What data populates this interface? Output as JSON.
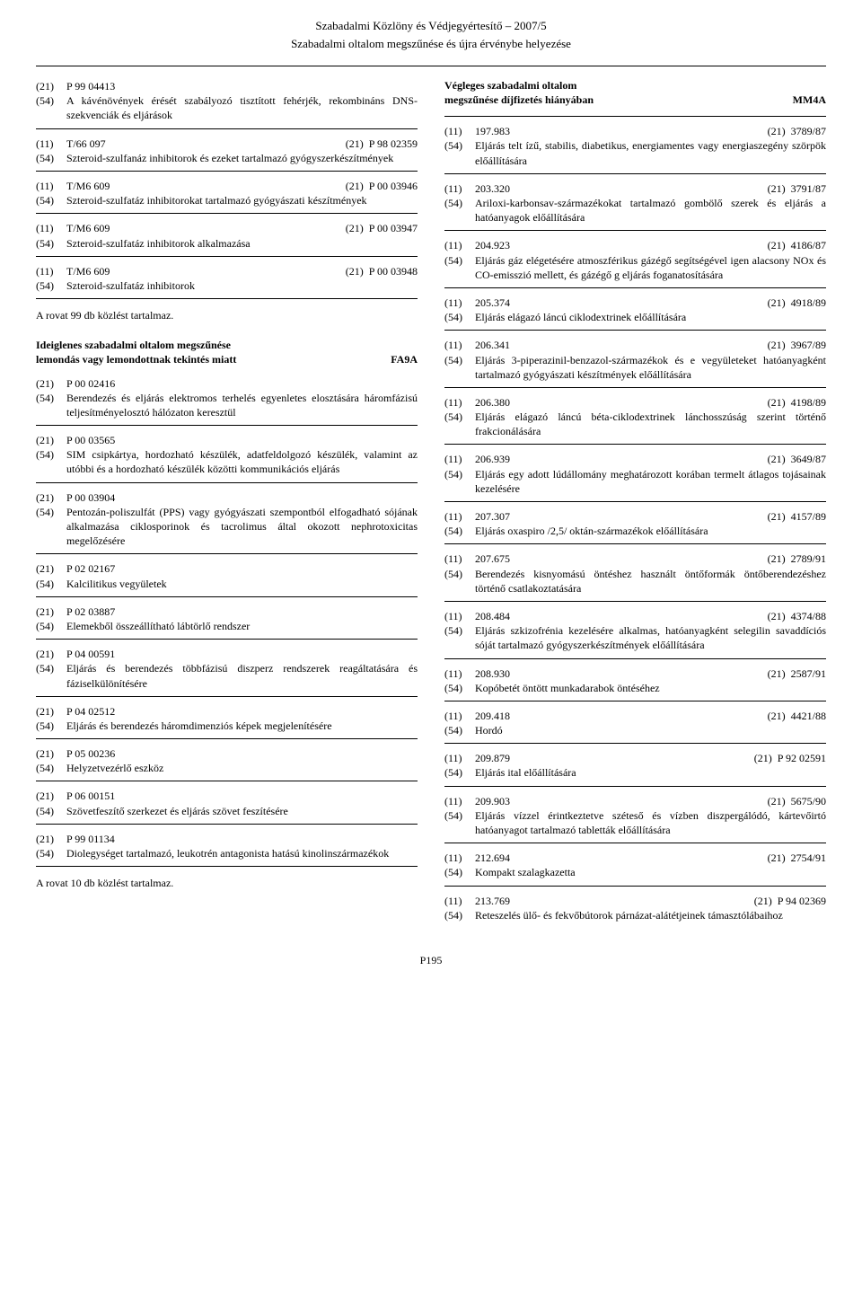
{
  "header": {
    "line1": "Szabadalmi Közlöny és Védjegyértesítő – 2007/5",
    "line2": "Szabadalmi oltalom megszűnése és újra érvénybe helyezése"
  },
  "left_entries_a": [
    {
      "c1": "(21)",
      "v1": "P 99 04413",
      "c2": "",
      "v2": "",
      "d_code": "(54)",
      "d": "A kávénövények érését szabályozó tisztított fehérjék, rekombináns DNS-szekvenciák és eljárások"
    },
    {
      "c1": "(11)",
      "v1": "T/66 097",
      "c2": "(21)",
      "v2": "P 98 02359",
      "d_code": "(54)",
      "d": "Szteroid-szulfanáz inhibitorok és ezeket tartalmazó gyógyszerkészítmények"
    },
    {
      "c1": "(11)",
      "v1": "T/M6 609",
      "c2": "(21)",
      "v2": "P 00 03946",
      "d_code": "(54)",
      "d": "Szteroid-szulfatáz inhibitorokat tartalmazó gyógyászati készítmények"
    },
    {
      "c1": "(11)",
      "v1": "T/M6 609",
      "c2": "(21)",
      "v2": "P 00 03947",
      "d_code": "(54)",
      "d": "Szteroid-szulfatáz inhibitorok alkalmazása"
    },
    {
      "c1": "(11)",
      "v1": "T/M6 609",
      "c2": "(21)",
      "v2": "P 00 03948",
      "d_code": "(54)",
      "d": "Szteroid-szulfatáz inhibitorok"
    }
  ],
  "left_closing_a": "A rovat 99 db közlést tartalmaz.",
  "section_fa9a": {
    "line1": "Ideiglenes szabadalmi oltalom megszűnése",
    "line2": "lemondás vagy lemondottnak tekintés miatt",
    "code": "FA9A"
  },
  "left_entries_b": [
    {
      "c1": "(21)",
      "v1": "P 00 02416",
      "c2": "",
      "v2": "",
      "d_code": "(54)",
      "d": "Berendezés és eljárás elektromos terhelés egyenletes elosztására háromfázisú teljesítményelosztó hálózaton keresztül"
    },
    {
      "c1": "(21)",
      "v1": "P 00 03565",
      "c2": "",
      "v2": "",
      "d_code": "(54)",
      "d": "SIM csipkártya, hordozható készülék, adatfeldolgozó készülék, valamint az utóbbi és a hordozható készülék közötti kommunikációs eljárás"
    },
    {
      "c1": "(21)",
      "v1": "P 00 03904",
      "c2": "",
      "v2": "",
      "d_code": "(54)",
      "d": "Pentozán-poliszulfát (PPS) vagy gyógyászati szempontból elfogadható sójának alkalmazása ciklosporinok és tacrolimus által okozott nephrotoxicitas megelőzésére"
    },
    {
      "c1": "(21)",
      "v1": "P 02 02167",
      "c2": "",
      "v2": "",
      "d_code": "(54)",
      "d": "Kalcilitikus vegyületek"
    },
    {
      "c1": "(21)",
      "v1": "P 02 03887",
      "c2": "",
      "v2": "",
      "d_code": "(54)",
      "d": "Elemekből összeállítható lábtörlő rendszer"
    },
    {
      "c1": "(21)",
      "v1": "P 04 00591",
      "c2": "",
      "v2": "",
      "d_code": "(54)",
      "d": "Eljárás és berendezés többfázisú diszperz rendszerek reagáltatására és fáziselkülönítésére"
    },
    {
      "c1": "(21)",
      "v1": "P 04 02512",
      "c2": "",
      "v2": "",
      "d_code": "(54)",
      "d": "Eljárás és berendezés háromdimenziós képek megjelenítésére"
    },
    {
      "c1": "(21)",
      "v1": "P 05 00236",
      "c2": "",
      "v2": "",
      "d_code": "(54)",
      "d": "Helyzetvezérlő eszköz"
    },
    {
      "c1": "(21)",
      "v1": "P 06 00151",
      "c2": "",
      "v2": "",
      "d_code": "(54)",
      "d": "Szövetfeszítő szerkezet és eljárás szövet feszítésére"
    },
    {
      "c1": "(21)",
      "v1": "P 99 01134",
      "c2": "",
      "v2": "",
      "d_code": "(54)",
      "d": "Diolegységet tartalmazó, leukotrén antagonista hatású kinolinszármazékok"
    }
  ],
  "left_closing_b": "A rovat 10 db közlést tartalmaz.",
  "section_mm4a": {
    "line1": "Végleges szabadalmi oltalom",
    "line2": "megszűnése díjfizetés hiányában",
    "code": "MM4A"
  },
  "right_entries": [
    {
      "c1": "(11)",
      "v1": "197.983",
      "c2": "(21)",
      "v2": "3789/87",
      "d_code": "(54)",
      "d": "Eljárás telt ízű, stabilis, diabetikus, energiamentes vagy energiaszegény szörpök előállítására"
    },
    {
      "c1": "(11)",
      "v1": "203.320",
      "c2": "(21)",
      "v2": "3791/87",
      "d_code": "(54)",
      "d": "Ariloxi-karbonsav-származékokat tartalmazó gombölő szerek és eljárás a hatóanyagok előállítására"
    },
    {
      "c1": "(11)",
      "v1": "204.923",
      "c2": "(21)",
      "v2": "4186/87",
      "d_code": "(54)",
      "d": "Eljárás gáz elégetésére atmoszférikus gázégő segítségével igen alacsony NOx és CO-emisszió mellett, és gázégő g eljárás foganatosítására"
    },
    {
      "c1": "(11)",
      "v1": "205.374",
      "c2": "(21)",
      "v2": "4918/89",
      "d_code": "(54)",
      "d": "Eljárás elágazó láncú ciklodextrinek előállítására"
    },
    {
      "c1": "(11)",
      "v1": "206.341",
      "c2": "(21)",
      "v2": "3967/89",
      "d_code": "(54)",
      "d": "Eljárás 3-piperazinil-benzazol-származékok és e vegyületeket hatóanyagként tartalmazó gyógyászati készítmények előállítására"
    },
    {
      "c1": "(11)",
      "v1": "206.380",
      "c2": "(21)",
      "v2": "4198/89",
      "d_code": "(54)",
      "d": "Eljárás elágazó láncú béta-ciklodextrinek lánchosszúság szerint történő frakcionálására"
    },
    {
      "c1": "(11)",
      "v1": "206.939",
      "c2": "(21)",
      "v2": "3649/87",
      "d_code": "(54)",
      "d": "Eljárás egy adott lúdállomány meghatározott korában termelt átlagos tojásainak kezelésére"
    },
    {
      "c1": "(11)",
      "v1": "207.307",
      "c2": "(21)",
      "v2": "4157/89",
      "d_code": "(54)",
      "d": "Eljárás oxaspiro /2,5/ oktán-származékok előállítására"
    },
    {
      "c1": "(11)",
      "v1": "207.675",
      "c2": "(21)",
      "v2": "2789/91",
      "d_code": "(54)",
      "d": "Berendezés kisnyomású öntéshez használt öntőformák öntőberendezéshez történő csatlakoztatására"
    },
    {
      "c1": "(11)",
      "v1": "208.484",
      "c2": "(21)",
      "v2": "4374/88",
      "d_code": "(54)",
      "d": "Eljárás szkizofrénia kezelésére alkalmas, hatóanyagként selegilin savaddíciós sóját tartalmazó gyógyszerkészítmények előállítására"
    },
    {
      "c1": "(11)",
      "v1": "208.930",
      "c2": "(21)",
      "v2": "2587/91",
      "d_code": "(54)",
      "d": "Kopóbetét öntött munkadarabok öntéséhez"
    },
    {
      "c1": "(11)",
      "v1": "209.418",
      "c2": "(21)",
      "v2": "4421/88",
      "d_code": "(54)",
      "d": "Hordó"
    },
    {
      "c1": "(11)",
      "v1": "209.879",
      "c2": "(21)",
      "v2": "P 92 02591",
      "d_code": "(54)",
      "d": "Eljárás ital előállítására"
    },
    {
      "c1": "(11)",
      "v1": "209.903",
      "c2": "(21)",
      "v2": "5675/90",
      "d_code": "(54)",
      "d": "Eljárás vízzel érintkeztetve széteső és vízben diszpergálódó, kártevőirtó hatóanyagot tartalmazó tabletták előállítására"
    },
    {
      "c1": "(11)",
      "v1": "212.694",
      "c2": "(21)",
      "v2": "2754/91",
      "d_code": "(54)",
      "d": "Kompakt szalagkazetta"
    },
    {
      "c1": "(11)",
      "v1": "213.769",
      "c2": "(21)",
      "v2": "P 94 02369",
      "d_code": "(54)",
      "d": "Reteszelés ülő- és fekvőbútorok párnázat-alátétjeinek támasztólábaihoz"
    }
  ],
  "footer": "P195"
}
